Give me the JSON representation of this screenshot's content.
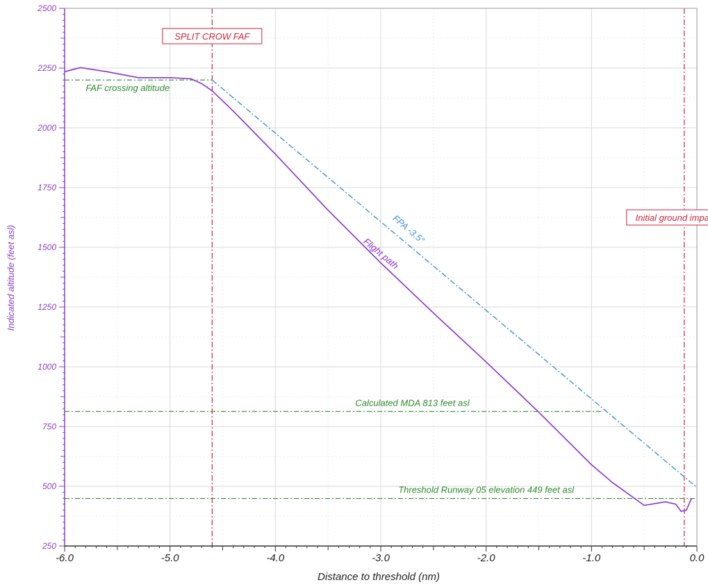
{
  "chart_data": {
    "type": "line",
    "xlabel": "Distance to threshold (nm)",
    "ylabel": "Indicated altitude (feet asl)",
    "xlim": [
      -6.0,
      0.0
    ],
    "ylim": [
      250,
      2500
    ],
    "x_ticks": [
      "-6.0",
      "-5.0",
      "-4.0",
      "-3.0",
      "-2.0",
      "-1.0",
      "0.0"
    ],
    "y_ticks": [
      "2500",
      "2250",
      "2000",
      "1750",
      "1500",
      "1250",
      "1000",
      "750",
      "500",
      "250"
    ],
    "grid": true,
    "colors": {
      "flight_path": "#8a2fd0",
      "fpa": "#3a8fd6",
      "reference": "#2e8b2e",
      "marker": "#d0223a",
      "axis": "#8a3fc4"
    },
    "series": [
      {
        "name": "Flight path",
        "x": [
          -6.0,
          -5.85,
          -5.6,
          -5.3,
          -5.0,
          -4.8,
          -4.7,
          -4.6,
          -4.4,
          -4.0,
          -3.5,
          -3.0,
          -2.5,
          -2.0,
          -1.5,
          -1.0,
          -0.8,
          -0.5,
          -0.3,
          -0.2,
          -0.15,
          -0.1,
          -0.05
        ],
        "y": [
          2235,
          2252,
          2235,
          2210,
          2210,
          2205,
          2185,
          2155,
          2070,
          1890,
          1655,
          1435,
          1225,
          1020,
          810,
          590,
          515,
          420,
          435,
          425,
          395,
          400,
          450
        ]
      },
      {
        "name": "FPA -3.5°",
        "x": [
          -4.6,
          0.0
        ],
        "y": [
          2200,
          495
        ]
      }
    ],
    "reference_lines": [
      {
        "label": "FAF crossing altitude",
        "y": 2200
      },
      {
        "label": "Calculated MDA 813 feet asl",
        "y": 813
      },
      {
        "label": "Threshold Runway 05 elevation 449 feet asl",
        "y": 449
      }
    ],
    "vertical_markers": [
      {
        "label": "SPLIT CROW FAF",
        "x": -4.6
      },
      {
        "label": "Initial ground impact",
        "x": -0.12
      }
    ],
    "annotations": {
      "fpa_label": "FPA -3.5°",
      "flight_path_label": "Flight path"
    }
  }
}
